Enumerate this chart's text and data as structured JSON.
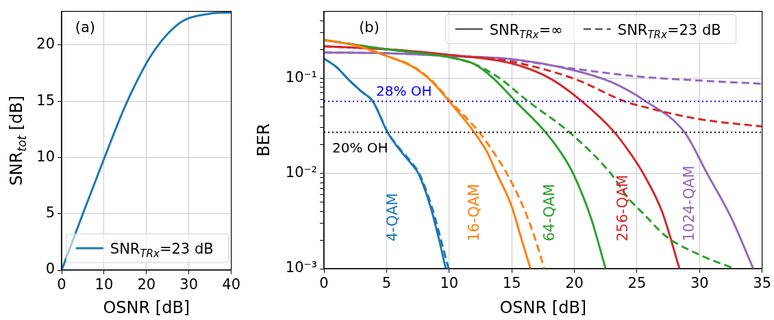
{
  "chart_data": [
    {
      "type": "line",
      "title": "(a)",
      "xlabel": "OSNR [dB]",
      "ylabel": "SNR$_{tot}$ [dB]",
      "xlim": [
        0,
        40
      ],
      "xticks": [
        0,
        10,
        20,
        30,
        40
      ],
      "ylim": [
        0,
        23
      ],
      "yticks": [
        0,
        5,
        10,
        15,
        20
      ],
      "grid": true,
      "legend": "bottom right",
      "series": [
        {
          "name": "SNR$_{TRx}$=23 dB",
          "color": "#1f77b4",
          "line_style": "solid",
          "x": [
            0,
            2,
            5,
            10,
            15,
            20,
            22,
            25,
            28,
            30,
            35,
            40
          ],
          "values": [
            0,
            2,
            5,
            9.9,
            14.6,
            18.4,
            19.6,
            21.0,
            22.0,
            22.4,
            22.8,
            22.9
          ]
        }
      ]
    },
    {
      "type": "line",
      "title": "(b)",
      "xlabel": "OSNR [dB]",
      "ylabel": "BER",
      "log": "y",
      "xlim": [
        0,
        35
      ],
      "xticks": [
        0,
        5,
        10,
        15,
        20,
        25,
        30,
        35
      ],
      "ylim": [
        0.001,
        0.5
      ],
      "yticks": [
        {
          "value": 0.001,
          "label": "10⁻³"
        },
        {
          "value": 0.002,
          "label": null
        },
        {
          "value": 0.003,
          "label": null
        },
        {
          "value": 0.004,
          "label": null
        },
        {
          "value": 0.005,
          "label": null
        },
        {
          "value": 0.006,
          "label": null
        },
        {
          "value": 0.007,
          "label": null
        },
        {
          "value": 0.008,
          "label": null
        },
        {
          "value": 0.009,
          "label": null
        },
        {
          "value": 0.01,
          "label": "10⁻²"
        },
        {
          "value": 0.02,
          "label": null
        },
        {
          "value": 0.03,
          "label": null
        },
        {
          "value": 0.04,
          "label": null
        },
        {
          "value": 0.05,
          "label": null
        },
        {
          "value": 0.06,
          "label": null
        },
        {
          "value": 0.07,
          "label": null
        },
        {
          "value": 0.08,
          "label": null
        },
        {
          "value": 0.09,
          "label": null
        },
        {
          "value": 0.1,
          "label": "10⁻¹"
        },
        {
          "value": 0.2,
          "label": null
        },
        {
          "value": 0.3,
          "label": null
        },
        {
          "value": 0.4,
          "label": null
        }
      ],
      "grid": true,
      "legend": "top right",
      "ref_lines": [
        {
          "axis": "y",
          "value": 0.057,
          "label": "28% OH",
          "color": "#0000ff",
          "line_style": "dotted"
        },
        {
          "axis": "y",
          "value": 0.027,
          "label": "20% OH",
          "color": "#000000",
          "line_style": "dotted"
        }
      ],
      "series": [
        {
          "name": "SNR$_{TRx}$=∞",
          "color": "#000000",
          "line_style": "solid"
        },
        {
          "name": "SNR$_{TRx}$=23 dB",
          "color": "#000000",
          "line_style": "dashed"
        },
        {
          "name": "4-QAM",
          "color": "#1f77b4",
          "line_style": "solid",
          "x": [
            0,
            1,
            2,
            3,
            3.9,
            5.07,
            6,
            7,
            7.54,
            8.5,
            9.2,
            9.73
          ],
          "values": [
            0.16,
            0.13,
            0.095,
            0.072,
            0.057,
            0.027,
            0.018,
            0.0125,
            0.01,
            0.0045,
            0.002,
            0.001
          ]
        },
        {
          "color": "#1f77b4",
          "line_style": "dashed",
          "x": [
            0,
            1,
            2,
            3,
            3.9,
            5.1,
            6,
            7,
            7.6,
            8.6,
            9.35,
            9.95
          ],
          "values": [
            0.16,
            0.13,
            0.095,
            0.072,
            0.057,
            0.027,
            0.0185,
            0.013,
            0.01,
            0.0045,
            0.002,
            0.001
          ]
        },
        {
          "name": "16-QAM",
          "color": "#ff7f0e",
          "line_style": "solid",
          "x": [
            0,
            2.5,
            5,
            7,
            8.5,
            10,
            12,
            13,
            13.8,
            15,
            15.8,
            16.5
          ],
          "values": [
            0.25,
            0.22,
            0.17,
            0.133,
            0.095,
            0.057,
            0.027,
            0.017,
            0.01,
            0.0045,
            0.002,
            0.001
          ]
        },
        {
          "color": "#ff7f0e",
          "line_style": "dashed",
          "x": [
            0,
            2.5,
            5,
            7,
            8.5,
            10.1,
            12.4,
            13.5,
            14.6,
            16,
            16.9,
            17.6
          ],
          "values": [
            0.25,
            0.22,
            0.17,
            0.135,
            0.097,
            0.057,
            0.027,
            0.017,
            0.01,
            0.0042,
            0.002,
            0.001
          ]
        },
        {
          "name": "64-QAM",
          "color": "#2ca02c",
          "line_style": "solid",
          "x": [
            0,
            5,
            10,
            12,
            13.5,
            15.3,
            17.7,
            19,
            19.9,
            21.3,
            22.5
          ],
          "values": [
            0.25,
            0.2,
            0.165,
            0.14,
            0.1,
            0.057,
            0.027,
            0.016,
            0.01,
            0.0035,
            0.001
          ]
        },
        {
          "color": "#2ca02c",
          "line_style": "dashed",
          "x": [
            0,
            5,
            10,
            12,
            14,
            16.3,
            19.6,
            22.9,
            24.3,
            25.5,
            27.3,
            30,
            32.8
          ],
          "values": [
            0.25,
            0.2,
            0.165,
            0.14,
            0.1,
            0.057,
            0.027,
            0.01,
            0.0055,
            0.0038,
            0.0022,
            0.0014,
            0.001
          ]
        },
        {
          "name": "256-QAM",
          "color": "#d62728",
          "line_style": "solid",
          "x": [
            0,
            5,
            10,
            15,
            18,
            20.6,
            23.2,
            24.5,
            25.5,
            27,
            28.4
          ],
          "values": [
            0.215,
            0.2,
            0.175,
            0.142,
            0.1,
            0.057,
            0.027,
            0.016,
            0.01,
            0.004,
            0.001
          ]
        },
        {
          "color": "#d62728",
          "line_style": "dashed",
          "x": [
            0,
            5,
            10,
            15,
            20,
            24,
            25,
            30,
            35
          ],
          "values": [
            0.215,
            0.2,
            0.175,
            0.148,
            0.098,
            0.057,
            0.052,
            0.037,
            0.031
          ]
        },
        {
          "name": "1024-QAM",
          "color": "#9467bd",
          "line_style": "solid",
          "x": [
            0,
            5,
            10,
            15,
            20,
            23,
            25.7,
            28.8,
            30.6,
            32.5,
            34.3
          ],
          "values": [
            0.185,
            0.182,
            0.17,
            0.158,
            0.12,
            0.09,
            0.057,
            0.027,
            0.01,
            0.0035,
            0.001
          ]
        },
        {
          "color": "#9467bd",
          "line_style": "dashed",
          "x": [
            0,
            5,
            10,
            15,
            20,
            25,
            30,
            35
          ],
          "values": [
            0.185,
            0.182,
            0.17,
            0.155,
            0.125,
            0.104,
            0.094,
            0.087
          ]
        }
      ]
    }
  ]
}
